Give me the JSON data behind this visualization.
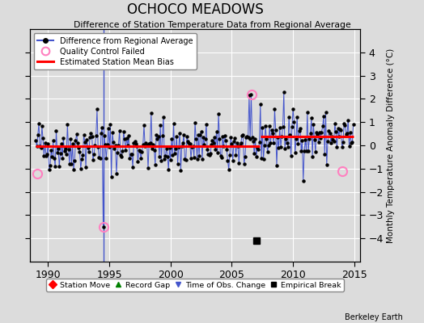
{
  "title": "OCHOCO MEADOWS",
  "subtitle": "Difference of Station Temperature Data from Regional Average",
  "ylabel_right": "Monthly Temperature Anomaly Difference (°C)",
  "xlim": [
    1988.5,
    2015.5
  ],
  "ylim": [
    -5,
    5
  ],
  "yticks": [
    -4,
    -3,
    -2,
    -1,
    0,
    1,
    2,
    3,
    4
  ],
  "xticks": [
    1990,
    1995,
    2000,
    2005,
    2010,
    2015
  ],
  "background_color": "#dcdcdc",
  "plot_background": "#dcdcdc",
  "grid_color": "#ffffff",
  "line_color": "#4455cc",
  "bias_value_early": -0.05,
  "bias_value_late": 0.38,
  "bias_break_year": 2007.3,
  "watermark": "Berkeley Earth",
  "qc_failed_times": [
    1989.1,
    1994.5,
    2006.6,
    2014.0
  ],
  "qc_failed_values": [
    -1.2,
    -3.5,
    2.2,
    -1.1
  ],
  "obs_change_year": 1994.5,
  "empirical_break_year": 2007.0,
  "empirical_break_value": -4.1,
  "seed": 42,
  "years_start": 1989,
  "years_end": 2015
}
